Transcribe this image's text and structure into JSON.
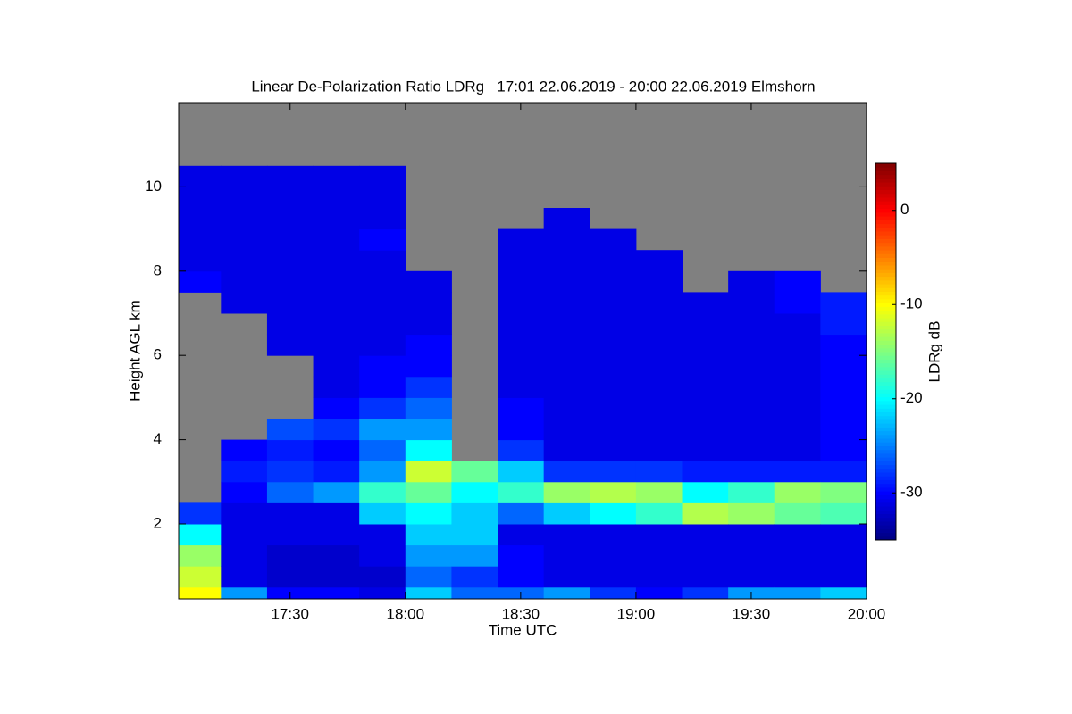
{
  "chart_data": {
    "type": "heatmap",
    "title": "Linear De-Polarization Ratio LDRg   17:01 22.06.2019 - 20:00 22.06.2019 Elmshorn",
    "xlabel": "Time UTC",
    "ylabel": "Height AGL km",
    "colorbar_label": "LDRg dB",
    "xlim": [
      1021,
      1200
    ],
    "xticks": [
      {
        "value": 1050,
        "label": "17:30"
      },
      {
        "value": 1080,
        "label": "18:00"
      },
      {
        "value": 1110,
        "label": "18:30"
      },
      {
        "value": 1140,
        "label": "19:00"
      },
      {
        "value": 1170,
        "label": "19:30"
      },
      {
        "value": 1200,
        "label": "20:00"
      }
    ],
    "ylim": [
      0.22,
      12
    ],
    "yticks": [
      2,
      4,
      6,
      8,
      10
    ],
    "clim": [
      -35,
      5
    ],
    "cticks": [
      -30,
      -20,
      -10,
      0
    ],
    "colormap": "jet",
    "missing_color": "#808080",
    "x_edges": [
      1020,
      1032,
      1044,
      1056,
      1068,
      1080,
      1092,
      1104,
      1116,
      1128,
      1140,
      1152,
      1164,
      1176,
      1188,
      1200
    ],
    "y_edges": [
      0,
      0.5,
      1,
      1.5,
      2,
      2.5,
      3,
      3.5,
      4,
      4.5,
      5,
      5.5,
      6,
      6.5,
      7,
      7.5,
      8,
      8.5,
      9,
      9.5,
      10,
      10.5,
      11,
      11.5,
      12
    ],
    "z": [
      [
        -10,
        -12,
        -14,
        -20,
        -28,
        null,
        null,
        null,
        null,
        null,
        null,
        null,
        null,
        null,
        null,
        -30,
        -31,
        -31,
        -31,
        -31,
        -31,
        null,
        null,
        null
      ],
      [
        -24,
        -31,
        -31,
        -31,
        -31,
        -30,
        -29,
        -30,
        null,
        null,
        null,
        null,
        null,
        null,
        -31,
        -31,
        -31,
        -31,
        -31,
        -31,
        -31,
        null,
        null,
        null
      ],
      [
        -30,
        -32,
        -32,
        -31,
        -31,
        -26,
        -28,
        -29,
        -27,
        null,
        null,
        null,
        -31,
        -31,
        -31,
        -31,
        -31,
        -31,
        -31,
        -31,
        -31,
        null,
        null,
        null
      ],
      [
        -30,
        -32,
        -32,
        -31,
        -31,
        -24,
        -29,
        -30,
        -28,
        -30,
        -31,
        -31,
        -31,
        -31,
        -31,
        -31,
        -31,
        -31,
        -31,
        -31,
        -31,
        null,
        null,
        null
      ],
      [
        -31,
        -32,
        -31,
        -31,
        -22,
        -18,
        -24,
        -26,
        -24,
        -28,
        -30,
        -30,
        -31,
        -31,
        -31,
        -31,
        -31,
        -30,
        -31,
        -31,
        -31,
        null,
        null,
        null
      ],
      [
        -22,
        -26,
        -24,
        -22,
        -20,
        -16,
        -12,
        -20,
        -24,
        -26,
        -28,
        -30,
        -30,
        -31,
        -31,
        -31,
        null,
        null,
        null,
        null,
        null,
        null,
        null,
        null
      ],
      [
        -26,
        -28,
        -24,
        -22,
        -22,
        -20,
        -16,
        null,
        null,
        null,
        null,
        null,
        null,
        null,
        null,
        null,
        null,
        null,
        null,
        null,
        null,
        null,
        null,
        null
      ],
      [
        -26,
        -30,
        -30,
        -31,
        -26,
        -18,
        -22,
        -28,
        -30,
        -30,
        -31,
        -31,
        -31,
        -31,
        -31,
        -31,
        -31,
        -31,
        null,
        null,
        null,
        null,
        null,
        null
      ],
      [
        -24,
        -31,
        -31,
        -31,
        -22,
        -14,
        -28,
        -31,
        -31,
        -31,
        -31,
        -31,
        -31,
        -31,
        -31,
        -31,
        -31,
        -31,
        -31,
        null,
        null,
        null,
        null,
        null
      ],
      [
        -28,
        -31,
        -31,
        -31,
        -20,
        -13,
        -28,
        -31,
        -31,
        -31,
        -31,
        -31,
        -31,
        -31,
        -31,
        -31,
        -31,
        -31,
        null,
        null,
        null,
        null,
        null,
        null
      ],
      [
        -30,
        -31,
        -31,
        -31,
        -18,
        -14,
        -28,
        -31,
        -31,
        -31,
        -31,
        -31,
        -31,
        -31,
        -31,
        -31,
        -31,
        null,
        null,
        null,
        null,
        null,
        null,
        null
      ],
      [
        -28,
        -31,
        -31,
        -31,
        -13,
        -20,
        -29,
        -31,
        -31,
        -31,
        -31,
        -31,
        -31,
        -31,
        -31,
        null,
        null,
        null,
        null,
        null,
        null,
        null,
        null,
        null
      ],
      [
        -24,
        -31,
        -31,
        -31,
        -14,
        -18,
        -29,
        -31,
        -31,
        -31,
        -31,
        -31,
        -31,
        -31,
        -31,
        -31,
        null,
        null,
        null,
        null,
        null,
        null,
        null,
        null
      ],
      [
        -24,
        -31,
        -31,
        -31,
        -16,
        -14,
        -29,
        -31,
        -31,
        -31,
        -31,
        -31,
        -31,
        -31,
        -30,
        -30,
        null,
        null,
        null,
        null,
        null,
        null,
        null,
        null
      ],
      [
        -22,
        -31,
        -31,
        -31,
        -17,
        -15,
        -29,
        -30,
        -30,
        -30,
        -30,
        -30,
        -30,
        -29,
        -29,
        null,
        null,
        null,
        null,
        null,
        null,
        null,
        null,
        null
      ]
    ]
  }
}
